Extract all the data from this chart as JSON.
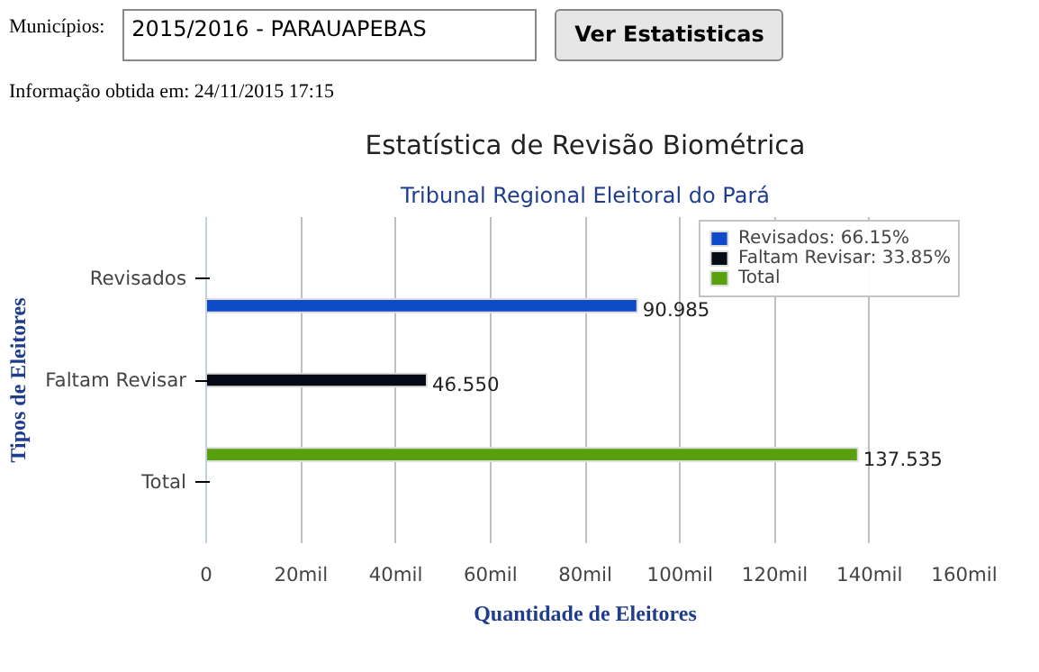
{
  "chart_data": {
    "type": "bar",
    "orientation": "horizontal",
    "title": "Estatística de Revisão Biométrica",
    "subtitle": "Tribunal Regional Eleitoral do Pará",
    "xlabel": "Quantidade de Eleitores",
    "ylabel": "Tipos de Eleitores",
    "categories": [
      "Revisados",
      "Faltam Revisar",
      "Total"
    ],
    "series": [
      {
        "name": "Revisados: 66.15%",
        "color": "#0f4bc8",
        "values": [
          90.985,
          null,
          null
        ],
        "value_labels": [
          "90.985",
          null,
          null
        ]
      },
      {
        "name": "Faltam Revisar: 33.85%",
        "color": "#050a14",
        "values": [
          null,
          46.55,
          null
        ],
        "value_labels": [
          null,
          "46.550",
          null
        ]
      },
      {
        "name": "Total",
        "color": "#58a10c",
        "values": [
          null,
          null,
          137.535
        ],
        "value_labels": [
          null,
          null,
          "137.535"
        ]
      }
    ],
    "xlim": [
      0,
      160
    ],
    "xticks": [
      0,
      {
        "value": 20,
        "label": "20mil"
      },
      {
        "value": 40,
        "label": "40mil"
      },
      {
        "value": 60,
        "label": "60mil"
      },
      {
        "value": 80,
        "label": "80mil"
      },
      {
        "value": 100,
        "label": "100mil"
      },
      {
        "value": 120,
        "label": "120mil"
      },
      {
        "value": 140,
        "label": "140mil"
      },
      {
        "value": 160,
        "label": "160mil"
      }
    ],
    "grid": "x",
    "legend": "top right",
    "annotations": [
      "Municípios:",
      "2015/2016 - PARAUAPEBAS",
      "Ver Estatisticas",
      "Informação obtida em: 24/11/2015 17:15"
    ]
  }
}
